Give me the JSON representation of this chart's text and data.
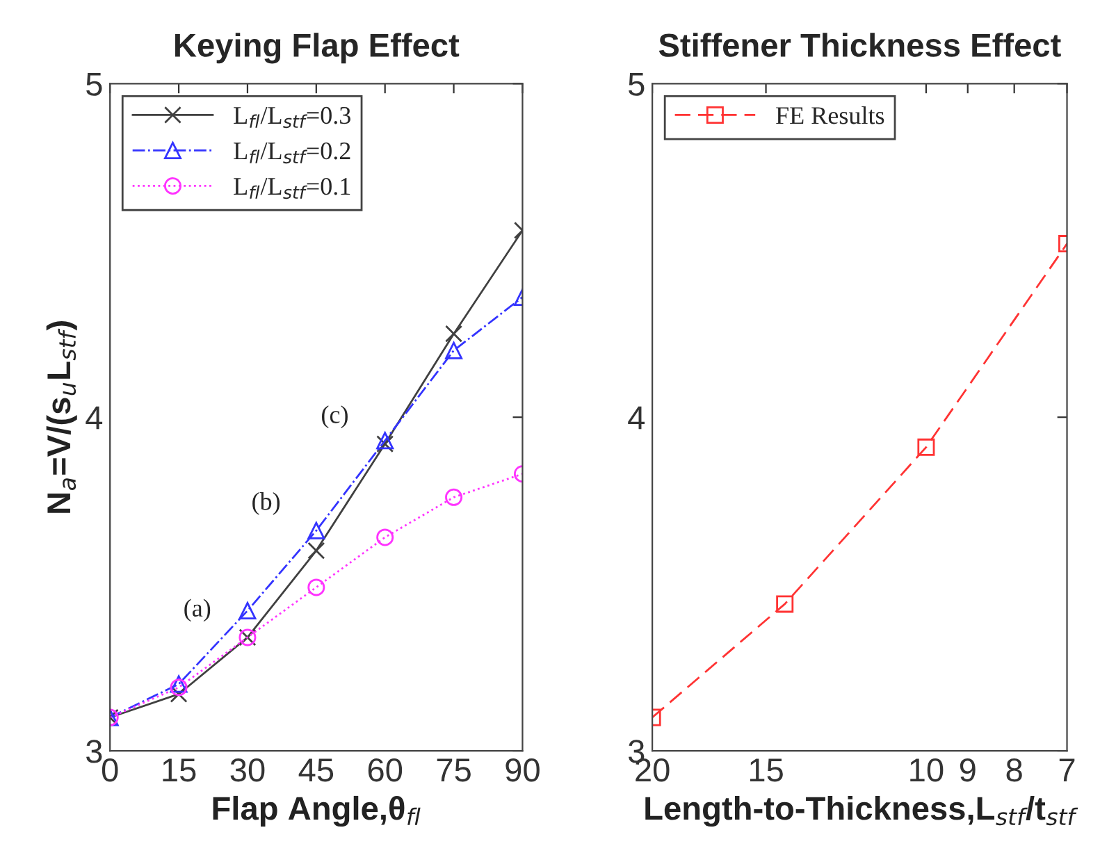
{
  "chart_data": [
    {
      "type": "line",
      "title": "Keying Flap Effect",
      "xlabel": "Flap Angle,θ$_{fl}$",
      "ylabel": "N$_{a}$=V/(s$_{u}$L$_{stf}$)",
      "x": [
        0,
        15,
        30,
        45,
        60,
        75,
        90
      ],
      "xlim": [
        0,
        90
      ],
      "xticks": [
        0,
        15,
        30,
        45,
        60,
        75,
        90
      ],
      "ylim": [
        3,
        5
      ],
      "yticks": [
        3,
        4,
        5
      ],
      "grid": false,
      "legend": "top left",
      "series": [
        {
          "name": "L$_{fl}$/L$_{stf}$=0.3",
          "color": "#404040",
          "marker": "cross",
          "line_style": "solid",
          "values": [
            3.1,
            3.17,
            3.34,
            3.6,
            3.92,
            4.25,
            4.56
          ]
        },
        {
          "name": "L$_{fl}$/L$_{stf}$=0.2",
          "color": "#3333ff",
          "marker": "triangle",
          "line_style": "dashdot",
          "values": [
            3.1,
            3.2,
            3.42,
            3.66,
            3.93,
            4.2,
            4.36
          ]
        },
        {
          "name": "L$_{fl}$/L$_{stf}$=0.1",
          "color": "#ff33ff",
          "marker": "circle",
          "line_style": "dotted",
          "values": [
            3.1,
            3.19,
            3.34,
            3.49,
            3.64,
            3.76,
            3.83
          ]
        }
      ],
      "annotations": [
        {
          "text": "(a)",
          "x": 30,
          "y": 3.34
        },
        {
          "text": "(b)",
          "x": 45,
          "y": 3.66
        },
        {
          "text": "(c)",
          "x": 60,
          "y": 3.92
        }
      ]
    },
    {
      "type": "line",
      "title": "Stiffener Thickness Effect",
      "xlabel": "Length-to-Thickness,L$_{stf}$/t$_{stf}$",
      "log": "x",
      "xlim": [
        20,
        7
      ],
      "xticks": [
        20,
        15,
        10,
        9,
        8,
        7
      ],
      "ylim": [
        3,
        5
      ],
      "yticks": [
        3,
        4,
        5
      ],
      "grid": false,
      "legend": "top left",
      "series": [
        {
          "name": "FE Results",
          "color": "#ff3333",
          "marker": "square",
          "line_style": "dashed",
          "x": [
            20,
            14.3,
            10,
            7
          ],
          "values": [
            3.1,
            3.44,
            3.91,
            4.52
          ]
        }
      ]
    }
  ]
}
